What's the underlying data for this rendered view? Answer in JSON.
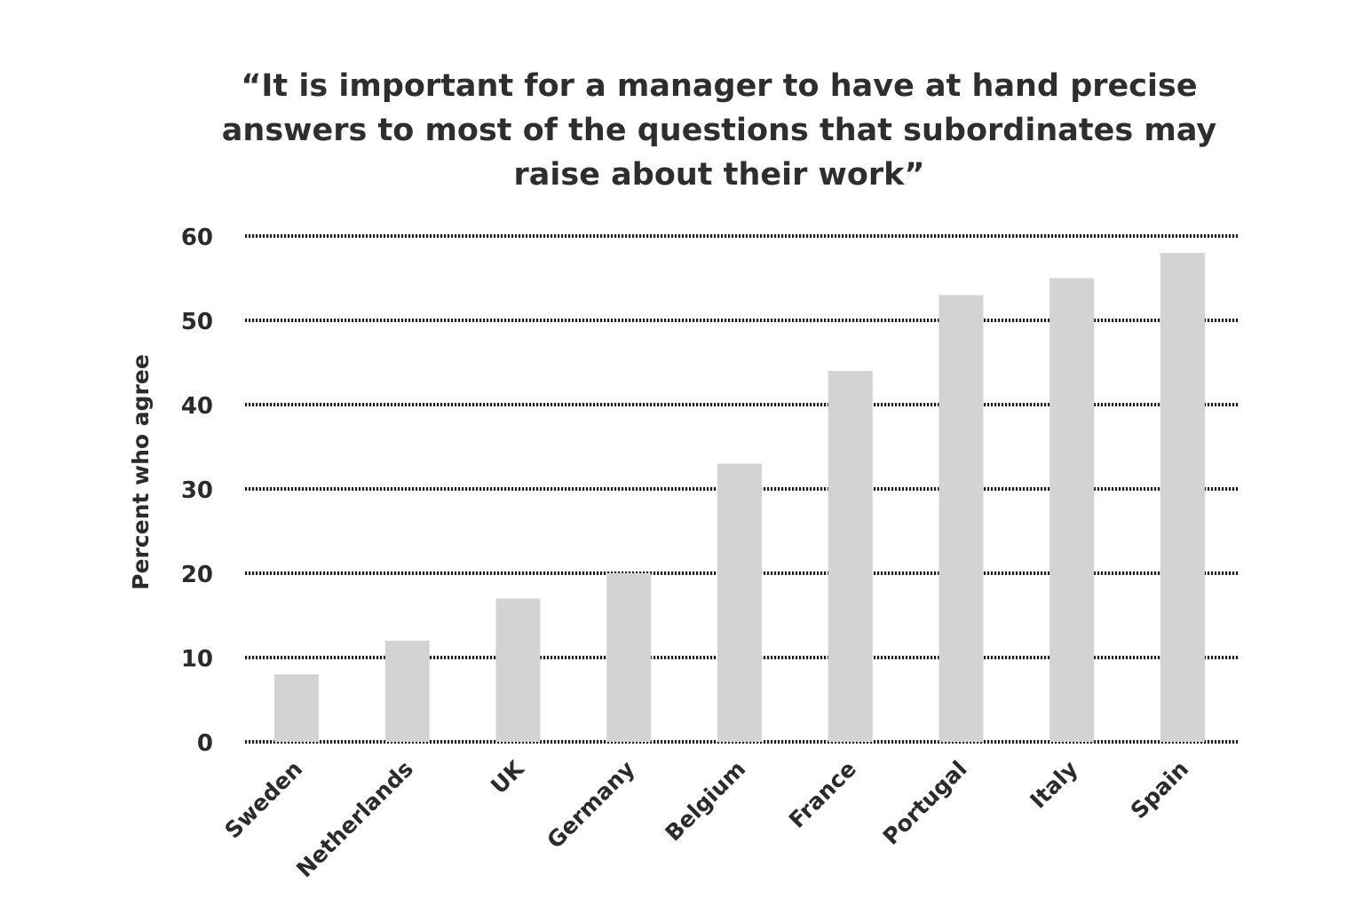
{
  "chart_data": {
    "type": "bar",
    "title_lines": [
      "“It is important for a manager to have at hand precise",
      "answers to most of the questions that subordinates may",
      "raise about their work”"
    ],
    "xlabel": "",
    "ylabel": "Percent who agree",
    "ylim": [
      0,
      60
    ],
    "yticks": [
      0,
      10,
      20,
      30,
      40,
      50,
      60
    ],
    "grid": true,
    "grid_style": "dotted",
    "bar_color": "#d3d3d3",
    "grid_color": "#1a1a1a",
    "categories": [
      "Sweden",
      "Netherlands",
      "UK",
      "Germany",
      "Belgium",
      "France",
      "Portugal",
      "Italy",
      "Spain"
    ],
    "values": [
      8,
      12,
      17,
      20,
      33,
      44,
      53,
      55,
      58
    ]
  }
}
